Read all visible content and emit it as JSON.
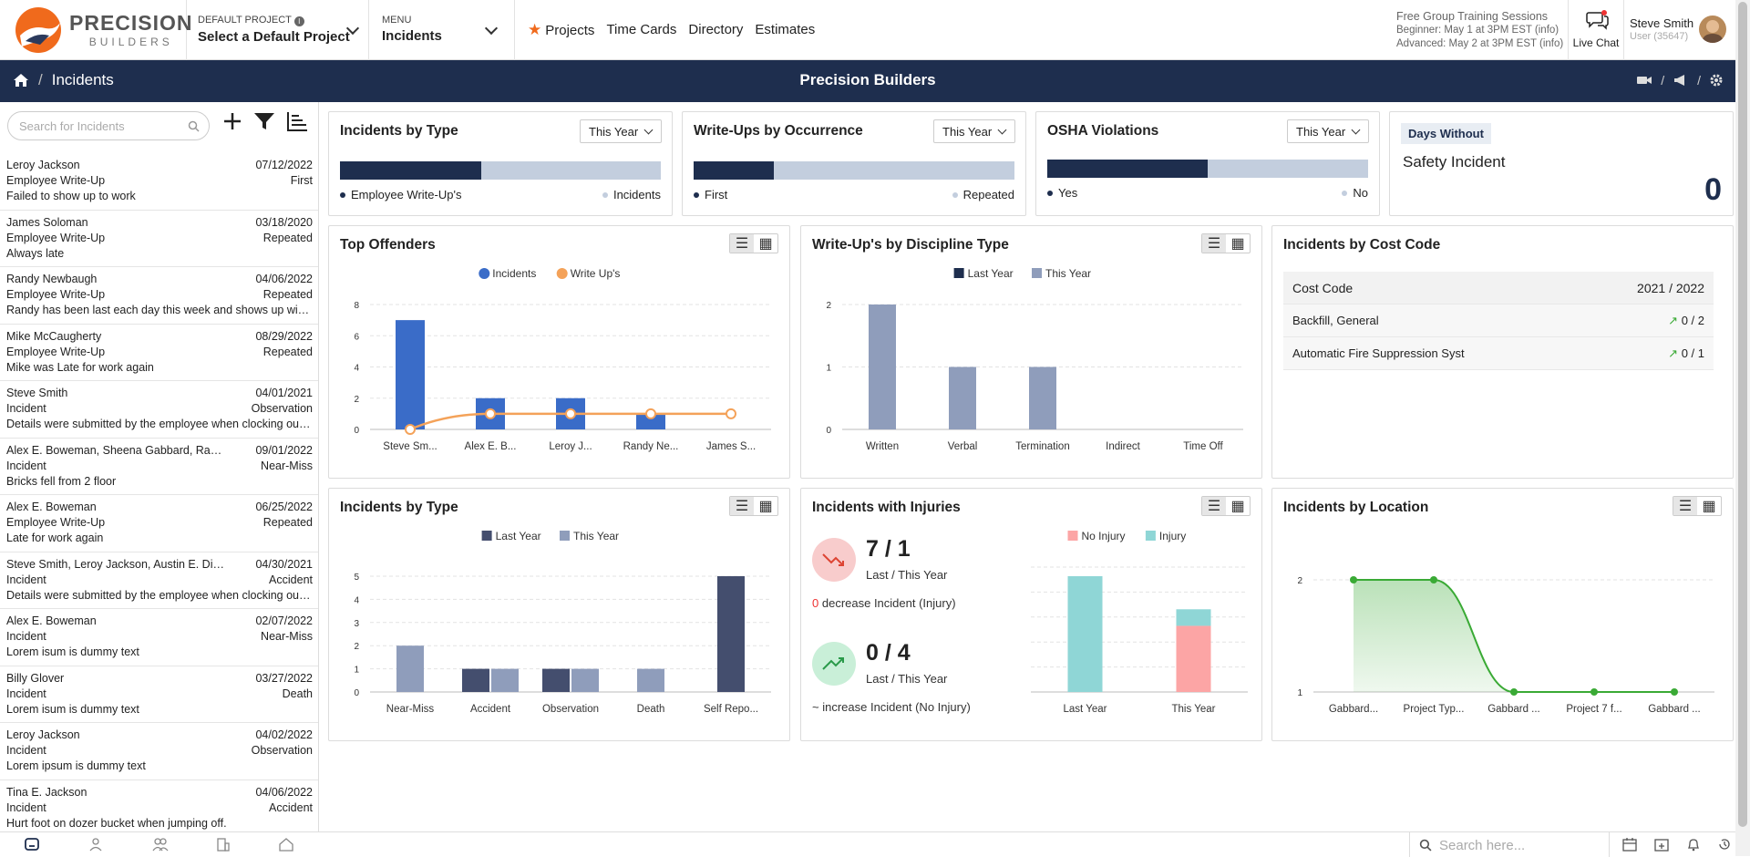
{
  "logo": {
    "brand": "PRECISION",
    "sub": "BUILDERS"
  },
  "header": {
    "default_project_label": "DEFAULT PROJECT",
    "default_project_value": "Select a Default Project",
    "menu_label": "MENU",
    "menu_value": "Incidents",
    "nav": [
      "Projects",
      "Time Cards",
      "Directory",
      "Estimates"
    ],
    "training_title": "Free Group Training Sessions",
    "training_beginner": "Beginner: May 1 at 3PM EST (info)",
    "training_advanced": "Advanced: May 2 at 3PM EST (info)",
    "live_chat": "Live Chat",
    "user_name": "Steve Smith",
    "user_id": "User (35647)"
  },
  "subbar": {
    "page": "Incidents",
    "company": "Precision Builders"
  },
  "sidebar": {
    "search_placeholder": "Search for Incidents",
    "items": [
      {
        "name": "Leroy Jackson",
        "date": "07/12/2022",
        "type": "Employee Write-Up",
        "status": "First",
        "desc": "Failed to show up to work"
      },
      {
        "name": "James Soloman",
        "date": "03/18/2020",
        "type": "Employee Write-Up",
        "status": "Repeated",
        "desc": "Always late"
      },
      {
        "name": "Randy Newbaugh",
        "date": "04/06/2022",
        "type": "Employee Write-Up",
        "status": "Repeated",
        "desc": "Randy has been last each day this week and shows up with an attitude"
      },
      {
        "name": "Mike McCaugherty",
        "date": "08/29/2022",
        "type": "Employee Write-Up",
        "status": "Repeated",
        "desc": "Mike was Late for work again"
      },
      {
        "name": "Steve Smith",
        "date": "04/01/2021",
        "type": "Incident",
        "status": "Observation",
        "desc": "Details were submitted by the employee when clocking out of the shift"
      },
      {
        "name": "Alex E. Boweman, Sheena Gabbard, Randy Newbaugh",
        "date": "09/01/2022",
        "type": "Incident",
        "status": "Near-Miss",
        "desc": "Bricks fell from 2 floor"
      },
      {
        "name": "Alex E. Boweman",
        "date": "06/25/2022",
        "type": "Employee Write-Up",
        "status": "Repeated",
        "desc": "Late for work again"
      },
      {
        "name": "Steve Smith, Leroy Jackson, Austin E. Dillon",
        "date": "04/30/2021",
        "type": "Incident",
        "status": "Accident",
        "desc": "Details were submitted by the employee when clocking out of the shift"
      },
      {
        "name": "Alex E. Boweman",
        "date": "02/07/2022",
        "type": "Incident",
        "status": "Near-Miss",
        "desc": "Lorem isum is dummy text"
      },
      {
        "name": "Billy Glover",
        "date": "03/27/2022",
        "type": "Incident",
        "status": "Death",
        "desc": "Lorem isum is dummy text"
      },
      {
        "name": "Leroy Jackson",
        "date": "04/02/2022",
        "type": "Incident",
        "status": "Observation",
        "desc": "Lorem ipsum is dummy text"
      },
      {
        "name": "Tina E. Jackson",
        "date": "04/06/2022",
        "type": "Incident",
        "status": "Accident",
        "desc": "Hurt foot on dozer bucket when jumping off."
      }
    ]
  },
  "cards": {
    "incidents_type_top": {
      "title": "Incidents by Type",
      "filter": "This Year",
      "legend_left": "Employee Write-Up's",
      "legend_right": "Incidents",
      "fraction": 0.44
    },
    "writeups_occ": {
      "title": "Write-Ups by Occurrence",
      "filter": "This Year",
      "legend_left": "First",
      "legend_right": "Repeated",
      "fraction": 0.25
    },
    "osha": {
      "title": "OSHA Violations",
      "filter": "This Year",
      "legend_left": "Yes",
      "legend_right": "No",
      "fraction": 0.5
    },
    "days_without": {
      "badge": "Days Without",
      "label": "Safety Incident",
      "value": "0"
    },
    "cost_code": {
      "title": "Incidents by Cost Code",
      "col1": "Cost Code",
      "col2": "2021 / 2022",
      "rows": [
        {
          "name": "Backfill, General",
          "val": "0 / 2"
        },
        {
          "name": "Automatic Fire Suppression Syst",
          "val": "0 / 1"
        }
      ]
    },
    "injuries": {
      "title": "Incidents with Injuries",
      "stat1": "7 / 1",
      "stat1_sub": "Last / This Year",
      "stat1_num": "0",
      "stat1_note": "decrease Incident (Injury)",
      "stat2": "0 / 4",
      "stat2_sub": "Last / This Year",
      "stat2_note": "~ increase Incident (No Injury)"
    }
  },
  "chart_data": [
    {
      "id": "top_offenders",
      "type": "bar",
      "title": "Top Offenders",
      "categories": [
        "Steve Sm...",
        "Alex E. B...",
        "Leroy J...",
        "Randy Ne...",
        "James S..."
      ],
      "series": [
        {
          "name": "Incidents",
          "type": "bar",
          "values": [
            7,
            2,
            2,
            1,
            0
          ]
        },
        {
          "name": "Write Up's",
          "type": "line",
          "values": [
            0,
            1,
            1,
            1,
            1
          ]
        }
      ],
      "ylim": [
        0,
        8
      ],
      "yticks": [
        0,
        2,
        4,
        6,
        8
      ]
    },
    {
      "id": "discipline",
      "type": "bar",
      "title": "Write-Up's by Discipline Type",
      "categories": [
        "Written",
        "Verbal",
        "Termination",
        "Indirect",
        "Time Off"
      ],
      "series": [
        {
          "name": "Last Year",
          "values": [
            0,
            0,
            0,
            0,
            0
          ]
        },
        {
          "name": "This Year",
          "values": [
            2,
            1,
            1,
            0,
            0
          ]
        }
      ],
      "ylim": [
        0,
        2
      ],
      "yticks": [
        0,
        1,
        2
      ]
    },
    {
      "id": "incidents_type",
      "type": "bar",
      "title": "Incidents by Type",
      "categories": [
        "Near-Miss",
        "Accident",
        "Observation",
        "Death",
        "Self Repo..."
      ],
      "series": [
        {
          "name": "Last Year",
          "values": [
            0,
            1,
            1,
            0,
            5
          ]
        },
        {
          "name": "This Year",
          "values": [
            2,
            1,
            1,
            1,
            0
          ]
        }
      ],
      "ylim": [
        0,
        5
      ],
      "yticks": [
        0,
        1,
        2,
        3,
        4,
        5
      ]
    },
    {
      "id": "injuries",
      "type": "bar",
      "title": "Incidents with Injuries",
      "categories": [
        "Last Year",
        "This Year"
      ],
      "series": [
        {
          "name": "No Injury",
          "values": [
            0,
            4
          ]
        },
        {
          "name": "Injury",
          "values": [
            7,
            1
          ]
        }
      ],
      "ylim": [
        0,
        7
      ]
    },
    {
      "id": "location",
      "type": "area",
      "title": "Incidents by Location",
      "categories": [
        "Gabbard...",
        "Project Typ...",
        "Gabbard ...",
        "Project 7 f...",
        "Gabbard ..."
      ],
      "series": [
        {
          "name": "Incidents",
          "values": [
            2,
            2,
            1,
            1,
            1
          ]
        }
      ],
      "ylim": [
        1,
        2
      ],
      "yticks": [
        1,
        2
      ]
    }
  ],
  "colors": {
    "navy": "#1e2e4e",
    "blue": "#3a6cc8",
    "orange": "#f4a259",
    "slate": "#8f9dbb",
    "dark": "#444e6e",
    "pink": "#fca5a5",
    "teal": "#8fd6d6",
    "green": "#3aaa35"
  }
}
